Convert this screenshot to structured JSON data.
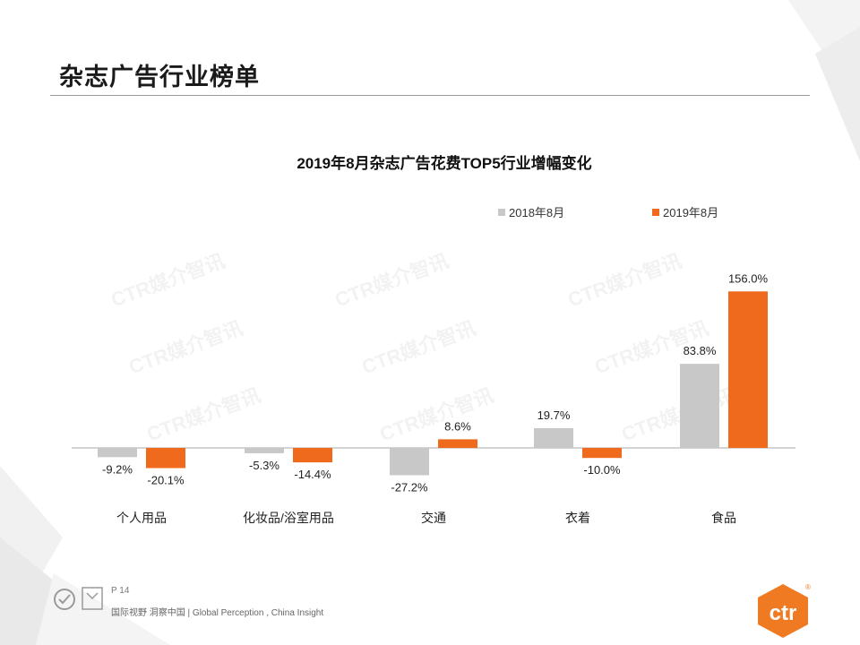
{
  "page": {
    "title": "杂志广告行业榜单",
    "page_label": "P 14",
    "slogan": "国际视野 洞察中国 | Global Perception , China Insight",
    "watermark": "CTR媒介智讯",
    "brand": "ctr"
  },
  "colors": {
    "series_2018": "#c8c8c8",
    "series_2019": "#ef6a1c",
    "brand": "#ef7a22"
  },
  "chart_data": {
    "type": "bar",
    "title": "2019年8月杂志广告花费TOP5行业增幅变化",
    "categories": [
      "个人用品",
      "化妆品/浴室用品",
      "交通",
      "衣着",
      "食品"
    ],
    "series": [
      {
        "name": "2018年8月",
        "values": [
          -9.2,
          -5.3,
          -27.2,
          19.7,
          83.8
        ],
        "labels": [
          "-9.2%",
          "-5.3%",
          "-27.2%",
          "19.7%",
          "83.8%"
        ]
      },
      {
        "name": "2019年8月",
        "values": [
          -20.1,
          -14.4,
          8.6,
          -10.0,
          156.0
        ],
        "labels": [
          "-20.1%",
          "-14.4%",
          "8.6%",
          "-10.0%",
          "156.0%"
        ]
      }
    ],
    "legend_position": "top-right",
    "grid": false,
    "xlabel": "",
    "ylabel": "",
    "unit": "%"
  }
}
